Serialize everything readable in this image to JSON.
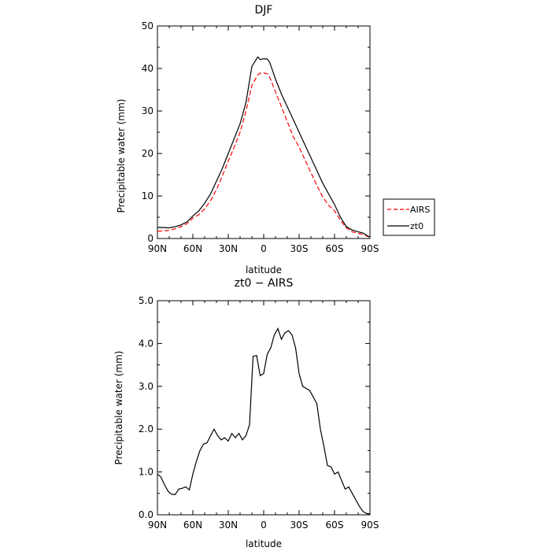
{
  "chart_data": [
    {
      "type": "line",
      "title": "DJF",
      "xlabel": "latitude",
      "ylabel": "Precipitable water (mm)",
      "xlim": [
        90,
        -90
      ],
      "ylim": [
        0,
        50
      ],
      "xtick_values": [
        90,
        60,
        30,
        0,
        -30,
        -60,
        -90
      ],
      "xtick_labels": [
        "90N",
        "60N",
        "30N",
        "0",
        "30S",
        "60S",
        "90S"
      ],
      "ytick_values": [
        0,
        10,
        20,
        30,
        40,
        50
      ],
      "ytick_labels": [
        "0",
        "10",
        "20",
        "30",
        "40",
        "50"
      ],
      "legend_position": "outside-right",
      "series": [
        {
          "name": "AIRS",
          "color": "#ff0000",
          "dash": "dashed",
          "x": [
            90,
            85,
            80,
            75,
            70,
            65,
            60,
            55,
            50,
            45,
            40,
            35,
            30,
            25,
            20,
            15,
            10,
            5,
            3,
            0,
            -3,
            -5,
            -10,
            -15,
            -20,
            -25,
            -30,
            -35,
            -40,
            -45,
            -50,
            -55,
            -60,
            -65,
            -70,
            -75,
            -80,
            -85,
            -88,
            -90
          ],
          "values": [
            1.7,
            1.8,
            1.9,
            2.3,
            2.8,
            3.5,
            4.8,
            5.6,
            7.0,
            8.9,
            11.5,
            14.8,
            18.2,
            21.5,
            25.0,
            30.0,
            36.0,
            38.5,
            38.9,
            38.9,
            38.8,
            38.0,
            34.5,
            31.0,
            27.5,
            24.0,
            21.5,
            18.5,
            15.5,
            12.5,
            9.8,
            7.8,
            6.5,
            4.3,
            2.5,
            1.6,
            1.2,
            0.9,
            0.5,
            0.3
          ]
        },
        {
          "name": "zt0",
          "color": "#000000",
          "dash": "solid",
          "x": [
            90,
            85,
            80,
            75,
            70,
            65,
            60,
            55,
            50,
            45,
            40,
            35,
            30,
            25,
            20,
            15,
            10,
            5,
            3,
            0,
            -3,
            -5,
            -10,
            -15,
            -20,
            -25,
            -30,
            -35,
            -40,
            -45,
            -50,
            -55,
            -60,
            -65,
            -70,
            -75,
            -80,
            -85,
            -88,
            -90
          ],
          "values": [
            2.6,
            2.6,
            2.5,
            2.8,
            3.2,
            3.9,
            5.3,
            6.5,
            8.3,
            10.5,
            13.5,
            16.5,
            20.0,
            23.5,
            27.0,
            32.0,
            40.5,
            42.7,
            42.1,
            42.3,
            42.2,
            41.5,
            37.5,
            34.0,
            31.0,
            28.0,
            25.0,
            22.0,
            19.0,
            16.0,
            13.0,
            10.5,
            8.0,
            5.0,
            2.8,
            2.0,
            1.6,
            1.2,
            0.6,
            0.4
          ]
        }
      ]
    },
    {
      "type": "line",
      "title": "zt0 − AIRS",
      "xlabel": "latitude",
      "ylabel": "Precipitable water (mm)",
      "xlim": [
        90,
        -90
      ],
      "ylim": [
        0,
        5
      ],
      "xtick_values": [
        90,
        60,
        30,
        0,
        -30,
        -60,
        -90
      ],
      "xtick_labels": [
        "90N",
        "60N",
        "30N",
        "0",
        "30S",
        "60S",
        "90S"
      ],
      "ytick_values": [
        0,
        1,
        2,
        3,
        4,
        5
      ],
      "ytick_labels": [
        "0.0",
        "1.0",
        "2.0",
        "3.0",
        "4.0",
        "5.0"
      ],
      "series": [
        {
          "name": "zt0 − AIRS",
          "color": "#000000",
          "dash": "solid",
          "x": [
            90,
            87,
            84,
            81,
            78,
            75,
            72,
            69,
            66,
            63,
            60,
            57,
            54,
            51,
            48,
            45,
            42,
            39,
            36,
            33,
            30,
            27,
            24,
            21,
            18,
            15,
            12,
            9,
            6,
            3,
            0,
            -3,
            -6,
            -9,
            -12,
            -15,
            -18,
            -21,
            -24,
            -27,
            -30,
            -33,
            -36,
            -39,
            -42,
            -45,
            -48,
            -51,
            -54,
            -57,
            -60,
            -63,
            -66,
            -69,
            -72,
            -75,
            -78,
            -81,
            -84,
            -87,
            -90
          ],
          "values": [
            0.95,
            0.88,
            0.7,
            0.55,
            0.48,
            0.47,
            0.6,
            0.62,
            0.65,
            0.58,
            0.95,
            1.25,
            1.5,
            1.65,
            1.68,
            1.85,
            2.0,
            1.85,
            1.75,
            1.8,
            1.72,
            1.9,
            1.8,
            1.9,
            1.75,
            1.85,
            2.1,
            3.7,
            3.72,
            3.25,
            3.3,
            3.75,
            3.9,
            4.2,
            4.35,
            4.1,
            4.25,
            4.3,
            4.2,
            3.9,
            3.3,
            3.0,
            2.95,
            2.9,
            2.75,
            2.6,
            2.0,
            1.6,
            1.15,
            1.12,
            0.95,
            1.0,
            0.8,
            0.6,
            0.65,
            0.5,
            0.35,
            0.2,
            0.08,
            0.03,
            0.02
          ]
        }
      ]
    }
  ]
}
